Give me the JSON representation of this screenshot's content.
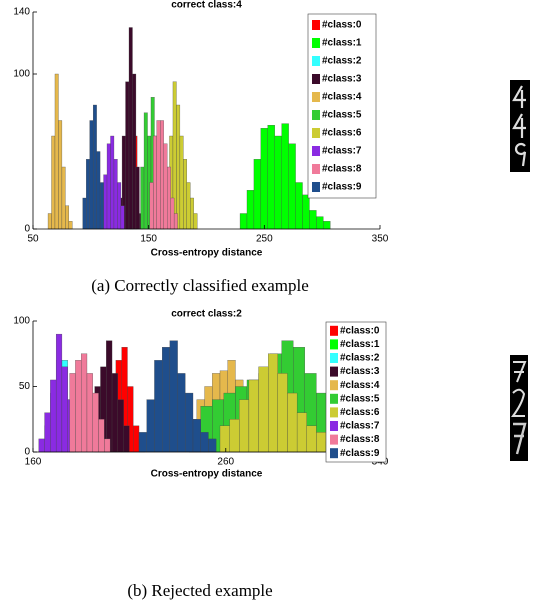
{
  "chart_data": [
    {
      "type": "histogram",
      "title": "correct class:4",
      "xlabel": "Cross-entropy distance",
      "caption": "(a) Correctly classified example",
      "xlim": [
        50,
        350
      ],
      "ylim": [
        0,
        140
      ],
      "xticks": [
        50,
        150,
        250,
        350
      ],
      "yticks": [
        0,
        100,
        140
      ],
      "series": [
        {
          "name": "#class:0",
          "color": "#ff0000",
          "bins": [
            134,
            137,
            140
          ],
          "values": [
            50,
            60
          ]
        },
        {
          "name": "#class:1",
          "color": "#00ff00",
          "bins": [
            229,
            235,
            241,
            247,
            253,
            259,
            265,
            271,
            277,
            283,
            289,
            295,
            301,
            307
          ],
          "values": [
            10,
            25,
            45,
            65,
            67,
            60,
            68,
            55,
            30,
            22,
            12,
            8,
            5
          ]
        },
        {
          "name": "#class:2",
          "color": "#33ffff",
          "bins": [
            130,
            133,
            136
          ],
          "values": [
            40,
            60
          ]
        },
        {
          "name": "#class:3",
          "color": "#3b0a2a",
          "bins": [
            124,
            127,
            130,
            133,
            136,
            139,
            142,
            145
          ],
          "values": [
            20,
            60,
            95,
            130,
            100,
            40,
            10
          ]
        },
        {
          "name": "#class:4",
          "color": "#e5b84c",
          "bins": [
            63,
            66,
            69,
            72,
            75,
            78,
            81,
            84
          ],
          "values": [
            10,
            60,
            100,
            70,
            40,
            15,
            5
          ]
        },
        {
          "name": "#class:5",
          "color": "#33cc33",
          "bins": [
            143,
            146,
            149,
            152,
            155,
            158,
            161,
            164
          ],
          "values": [
            40,
            75,
            60,
            85,
            60,
            50,
            20
          ]
        },
        {
          "name": "#class:6",
          "color": "#cccc33",
          "bins": [
            168,
            171,
            174,
            177,
            180,
            183,
            186,
            189,
            192
          ],
          "values": [
            60,
            95,
            80,
            60,
            45,
            30,
            20,
            10
          ]
        },
        {
          "name": "#class:7",
          "color": "#8a2be2",
          "bins": [
            108,
            111,
            114,
            117,
            120,
            123,
            126,
            129
          ],
          "values": [
            15,
            35,
            55,
            60,
            45,
            30,
            15
          ]
        },
        {
          "name": "#class:8",
          "color": "#f07a9a",
          "bins": [
            151,
            154,
            157,
            160,
            163,
            166,
            169,
            172,
            175
          ],
          "values": [
            30,
            60,
            70,
            70,
            55,
            40,
            20,
            10
          ]
        },
        {
          "name": "#class:9",
          "color": "#1f4e8c",
          "bins": [
            93,
            96,
            99,
            102,
            105,
            108,
            111
          ],
          "values": [
            20,
            45,
            70,
            80,
            50,
            30
          ]
        }
      ]
    },
    {
      "type": "histogram",
      "title": "correct class:2",
      "xlabel": "Cross-entropy distance",
      "caption": "(b) Rejected example",
      "xlim": [
        160,
        340
      ],
      "ylim": [
        0,
        100
      ],
      "xticks": [
        160,
        260,
        340
      ],
      "yticks": [
        0,
        50,
        100
      ],
      "series": [
        {
          "name": "#class:0",
          "color": "#ff0000",
          "bins": [
            200,
            203,
            206,
            209,
            212,
            215,
            218
          ],
          "values": [
            40,
            70,
            80,
            50,
            20,
            10
          ]
        },
        {
          "name": "#class:1",
          "color": "#00ff00",
          "bins": [
            304,
            309,
            314,
            319,
            324,
            329,
            334,
            339
          ],
          "values": [
            10,
            8,
            5,
            4,
            3,
            2,
            1
          ]
        },
        {
          "name": "#class:2",
          "color": "#33ffff",
          "bins": [
            166,
            169,
            172,
            175,
            178,
            181,
            184
          ],
          "values": [
            20,
            45,
            70,
            70,
            40,
            20
          ]
        },
        {
          "name": "#class:3",
          "color": "#3b0a2a",
          "bins": [
            192,
            195,
            198,
            201,
            204,
            207,
            210
          ],
          "values": [
            50,
            65,
            85,
            60,
            40,
            20
          ]
        },
        {
          "name": "#class:4",
          "color": "#e5b84c",
          "bins": [
            241,
            245,
            249,
            253,
            257,
            261,
            265,
            269,
            273,
            277,
            281
          ],
          "values": [
            25,
            40,
            50,
            60,
            62,
            70,
            55,
            45,
            30,
            20
          ]
        },
        {
          "name": "#class:5",
          "color": "#33cc33",
          "bins": [
            241,
            247,
            253,
            259,
            265,
            271,
            277,
            283,
            289,
            295,
            301,
            307,
            313
          ],
          "values": [
            20,
            35,
            40,
            45,
            50,
            55,
            60,
            75,
            85,
            80,
            60,
            45
          ]
        },
        {
          "name": "#class:6",
          "color": "#cccc33",
          "bins": [
            257,
            262,
            267,
            272,
            277,
            282,
            287,
            292,
            297,
            302,
            307,
            312,
            317,
            322
          ],
          "values": [
            20,
            25,
            40,
            55,
            65,
            75,
            60,
            45,
            30,
            20,
            15,
            8,
            4
          ]
        },
        {
          "name": "#class:7",
          "color": "#8a2be2",
          "bins": [
            163,
            166,
            169,
            172,
            175,
            178,
            181
          ],
          "values": [
            10,
            30,
            55,
            90,
            65,
            40
          ]
        },
        {
          "name": "#class:8",
          "color": "#f07a9a",
          "bins": [
            179,
            182,
            185,
            188,
            191,
            194,
            197,
            200
          ],
          "values": [
            60,
            70,
            75,
            60,
            45,
            25,
            10
          ]
        },
        {
          "name": "#class:9",
          "color": "#1f4e8c",
          "bins": [
            215,
            219,
            223,
            227,
            231,
            235,
            239,
            243,
            247,
            251,
            255
          ],
          "values": [
            15,
            40,
            70,
            80,
            85,
            60,
            45,
            25,
            15,
            10
          ]
        }
      ]
    }
  ]
}
